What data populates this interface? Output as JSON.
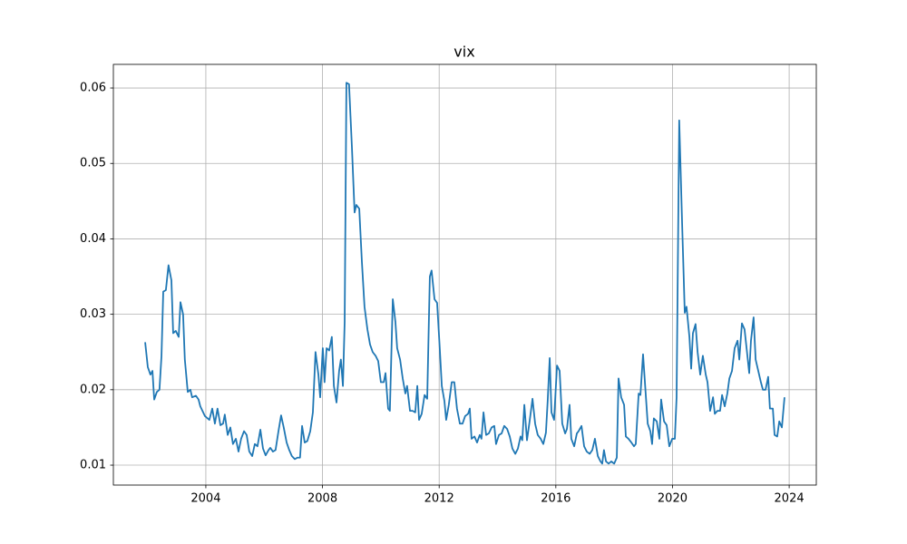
{
  "chart_data": {
    "type": "line",
    "title": "vix",
    "x": [
      2001.92,
      2002.01,
      2002.1,
      2002.17,
      2002.23,
      2002.32,
      2002.41,
      2002.48,
      2002.54,
      2002.63,
      2002.72,
      2002.82,
      2002.88,
      2002.97,
      2003.07,
      2003.13,
      2003.22,
      2003.28,
      2003.38,
      2003.47,
      2003.53,
      2003.66,
      2003.75,
      2003.81,
      2003.97,
      2004.12,
      2004.22,
      2004.31,
      2004.4,
      2004.5,
      2004.59,
      2004.65,
      2004.75,
      2004.84,
      2004.93,
      2005.03,
      2005.12,
      2005.21,
      2005.31,
      2005.4,
      2005.49,
      2005.59,
      2005.68,
      2005.77,
      2005.87,
      2005.96,
      2006.05,
      2006.15,
      2006.21,
      2006.3,
      2006.39,
      2006.49,
      2006.58,
      2006.67,
      2006.77,
      2006.86,
      2006.95,
      2007.05,
      2007.14,
      2007.23,
      2007.3,
      2007.39,
      2007.48,
      2007.58,
      2007.67,
      2007.76,
      2007.86,
      2007.92,
      2008.01,
      2008.07,
      2008.14,
      2008.23,
      2008.32,
      2008.39,
      2008.48,
      2008.57,
      2008.63,
      2008.7,
      2008.76,
      2008.82,
      2008.91,
      2009.01,
      2009.1,
      2009.16,
      2009.26,
      2009.35,
      2009.44,
      2009.54,
      2009.63,
      2009.72,
      2009.82,
      2009.91,
      2010.0,
      2010.1,
      2010.16,
      2010.25,
      2010.31,
      2010.41,
      2010.5,
      2010.56,
      2010.66,
      2010.75,
      2010.84,
      2010.9,
      2011.0,
      2011.09,
      2011.18,
      2011.25,
      2011.31,
      2011.4,
      2011.5,
      2011.59,
      2011.68,
      2011.74,
      2011.84,
      2011.93,
      2012.02,
      2012.09,
      2012.18,
      2012.24,
      2012.33,
      2012.43,
      2012.52,
      2012.61,
      2012.71,
      2012.8,
      2012.89,
      2012.99,
      2013.05,
      2013.11,
      2013.21,
      2013.3,
      2013.39,
      2013.45,
      2013.52,
      2013.61,
      2013.7,
      2013.8,
      2013.89,
      2013.95,
      2014.05,
      2014.14,
      2014.23,
      2014.33,
      2014.42,
      2014.51,
      2014.61,
      2014.7,
      2014.79,
      2014.85,
      2014.92,
      2015.01,
      2015.1,
      2015.2,
      2015.29,
      2015.38,
      2015.48,
      2015.57,
      2015.66,
      2015.72,
      2015.79,
      2015.85,
      2015.94,
      2016.04,
      2016.13,
      2016.22,
      2016.32,
      2016.38,
      2016.47,
      2016.53,
      2016.63,
      2016.72,
      2016.78,
      2016.88,
      2016.97,
      2017.06,
      2017.16,
      2017.25,
      2017.34,
      2017.44,
      2017.53,
      2017.59,
      2017.65,
      2017.72,
      2017.81,
      2017.9,
      2018.0,
      2018.09,
      2018.15,
      2018.24,
      2018.34,
      2018.4,
      2018.49,
      2018.59,
      2018.68,
      2018.74,
      2018.84,
      2018.9,
      2018.99,
      2019.08,
      2019.15,
      2019.24,
      2019.3,
      2019.36,
      2019.46,
      2019.55,
      2019.61,
      2019.71,
      2019.8,
      2019.89,
      2019.99,
      2020.08,
      2020.14,
      2020.23,
      2020.33,
      2020.42,
      2020.48,
      2020.58,
      2020.64,
      2020.7,
      2020.79,
      2020.86,
      2020.95,
      2021.04,
      2021.14,
      2021.2,
      2021.29,
      2021.39,
      2021.45,
      2021.54,
      2021.63,
      2021.7,
      2021.79,
      2021.88,
      2021.95,
      2022.04,
      2022.13,
      2022.23,
      2022.29,
      2022.38,
      2022.47,
      2022.54,
      2022.63,
      2022.69,
      2022.78,
      2022.85,
      2022.94,
      2023.03,
      2023.1,
      2023.19,
      2023.28,
      2023.34,
      2023.44,
      2023.5,
      2023.59,
      2023.66,
      2023.75,
      2023.84
    ],
    "series": [
      {
        "color": "#1f77b4",
        "values": [
          0.0263,
          0.023,
          0.022,
          0.0225,
          0.0187,
          0.0197,
          0.02,
          0.0245,
          0.033,
          0.0332,
          0.0365,
          0.0345,
          0.0275,
          0.0278,
          0.027,
          0.0316,
          0.03,
          0.024,
          0.0197,
          0.02,
          0.019,
          0.0192,
          0.0187,
          0.0178,
          0.0165,
          0.016,
          0.0175,
          0.0155,
          0.0175,
          0.0153,
          0.0155,
          0.0167,
          0.014,
          0.015,
          0.0128,
          0.0135,
          0.0118,
          0.0135,
          0.0145,
          0.014,
          0.0118,
          0.0112,
          0.0128,
          0.0125,
          0.0147,
          0.0122,
          0.0113,
          0.012,
          0.0123,
          0.0118,
          0.012,
          0.0145,
          0.0166,
          0.015,
          0.013,
          0.012,
          0.0112,
          0.0108,
          0.011,
          0.011,
          0.0152,
          0.013,
          0.0132,
          0.0145,
          0.017,
          0.025,
          0.022,
          0.019,
          0.0255,
          0.021,
          0.0255,
          0.0252,
          0.027,
          0.0205,
          0.0183,
          0.0225,
          0.024,
          0.0205,
          0.029,
          0.0607,
          0.0605,
          0.052,
          0.0435,
          0.0445,
          0.044,
          0.037,
          0.031,
          0.028,
          0.026,
          0.025,
          0.0245,
          0.0238,
          0.021,
          0.021,
          0.0222,
          0.0175,
          0.0172,
          0.032,
          0.029,
          0.0255,
          0.024,
          0.0215,
          0.0195,
          0.0205,
          0.0172,
          0.0172,
          0.017,
          0.0205,
          0.016,
          0.0168,
          0.0193,
          0.0188,
          0.035,
          0.0358,
          0.032,
          0.0315,
          0.0255,
          0.0205,
          0.0185,
          0.016,
          0.018,
          0.021,
          0.021,
          0.0175,
          0.0155,
          0.0155,
          0.0165,
          0.0168,
          0.0175,
          0.0135,
          0.0138,
          0.013,
          0.014,
          0.0135,
          0.017,
          0.014,
          0.0142,
          0.015,
          0.0152,
          0.0128,
          0.014,
          0.0142,
          0.0152,
          0.0148,
          0.0138,
          0.0122,
          0.0115,
          0.0122,
          0.0138,
          0.0133,
          0.018,
          0.0133,
          0.0158,
          0.0188,
          0.0155,
          0.014,
          0.0135,
          0.0128,
          0.0143,
          0.0185,
          0.0242,
          0.017,
          0.016,
          0.0232,
          0.0225,
          0.0155,
          0.0142,
          0.0148,
          0.018,
          0.0135,
          0.0125,
          0.0142,
          0.0145,
          0.0152,
          0.0125,
          0.0118,
          0.0115,
          0.012,
          0.0135,
          0.0112,
          0.0105,
          0.0102,
          0.012,
          0.0105,
          0.0102,
          0.0105,
          0.0102,
          0.011,
          0.0215,
          0.019,
          0.018,
          0.0138,
          0.0135,
          0.013,
          0.0125,
          0.0128,
          0.0195,
          0.0193,
          0.0247,
          0.0195,
          0.0155,
          0.0145,
          0.0128,
          0.0162,
          0.0158,
          0.0135,
          0.0187,
          0.0158,
          0.0153,
          0.0125,
          0.0135,
          0.0135,
          0.019,
          0.0557,
          0.042,
          0.0302,
          0.031,
          0.027,
          0.0228,
          0.0275,
          0.0287,
          0.025,
          0.022,
          0.0245,
          0.022,
          0.021,
          0.0172,
          0.019,
          0.0168,
          0.0172,
          0.0172,
          0.0193,
          0.0178,
          0.0195,
          0.0215,
          0.0225,
          0.0255,
          0.0265,
          0.024,
          0.0288,
          0.028,
          0.0255,
          0.0222,
          0.0265,
          0.0296,
          0.024,
          0.0225,
          0.021,
          0.02,
          0.02,
          0.0217,
          0.0175,
          0.0175,
          0.014,
          0.0138,
          0.0158,
          0.015,
          0.019
        ]
      }
    ],
    "xlim": [
      2000.83,
      2024.93
    ],
    "xticks": [
      2004,
      2008,
      2012,
      2016,
      2020,
      2024
    ],
    "ylim": [
      0.00736,
      0.06313
    ],
    "yticks": [
      0.01,
      0.02,
      0.03,
      0.04,
      0.05,
      0.06
    ],
    "grid": true
  }
}
